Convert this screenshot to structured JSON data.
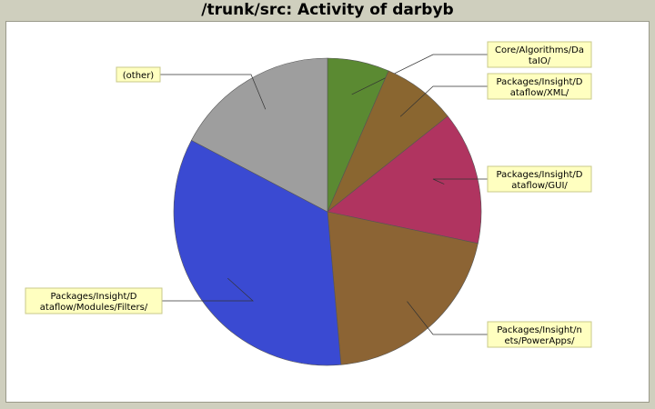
{
  "chart_data": {
    "type": "pie",
    "title": "/trunk/src: Activity of darbyb",
    "slices": [
      {
        "label": "Core/Algorithms/DataIO/",
        "lines": [
          "Core/Algorithms/Da",
          "taIO/"
        ],
        "value": 6.5,
        "color": "#5b8a32"
      },
      {
        "label": "Packages/Insight/Dataflow/XML/",
        "lines": [
          "Packages/Insight/D",
          "ataflow/XML/"
        ],
        "value": 7.8,
        "color": "#8a6630"
      },
      {
        "label": "Packages/Insight/Dataflow/GUI/",
        "lines": [
          "Packages/Insight/D",
          "ataflow/GUI/"
        ],
        "value": 14.0,
        "color": "#b03460"
      },
      {
        "label": "Packages/Insight/nets/PowerApps/",
        "lines": [
          "Packages/Insight/n",
          "ets/PowerApps/"
        ],
        "value": 20.3,
        "color": "#8c6434"
      },
      {
        "label": "Packages/Insight/Dataflow/Modules/Filters/",
        "lines": [
          "Packages/Insight/D",
          "ataflow/Modules/Filters/"
        ],
        "value": 34.1,
        "color": "#3a4ad2"
      },
      {
        "label": "(other)",
        "lines": [
          "(other)"
        ],
        "value": 17.3,
        "color": "#9e9e9e"
      }
    ]
  }
}
